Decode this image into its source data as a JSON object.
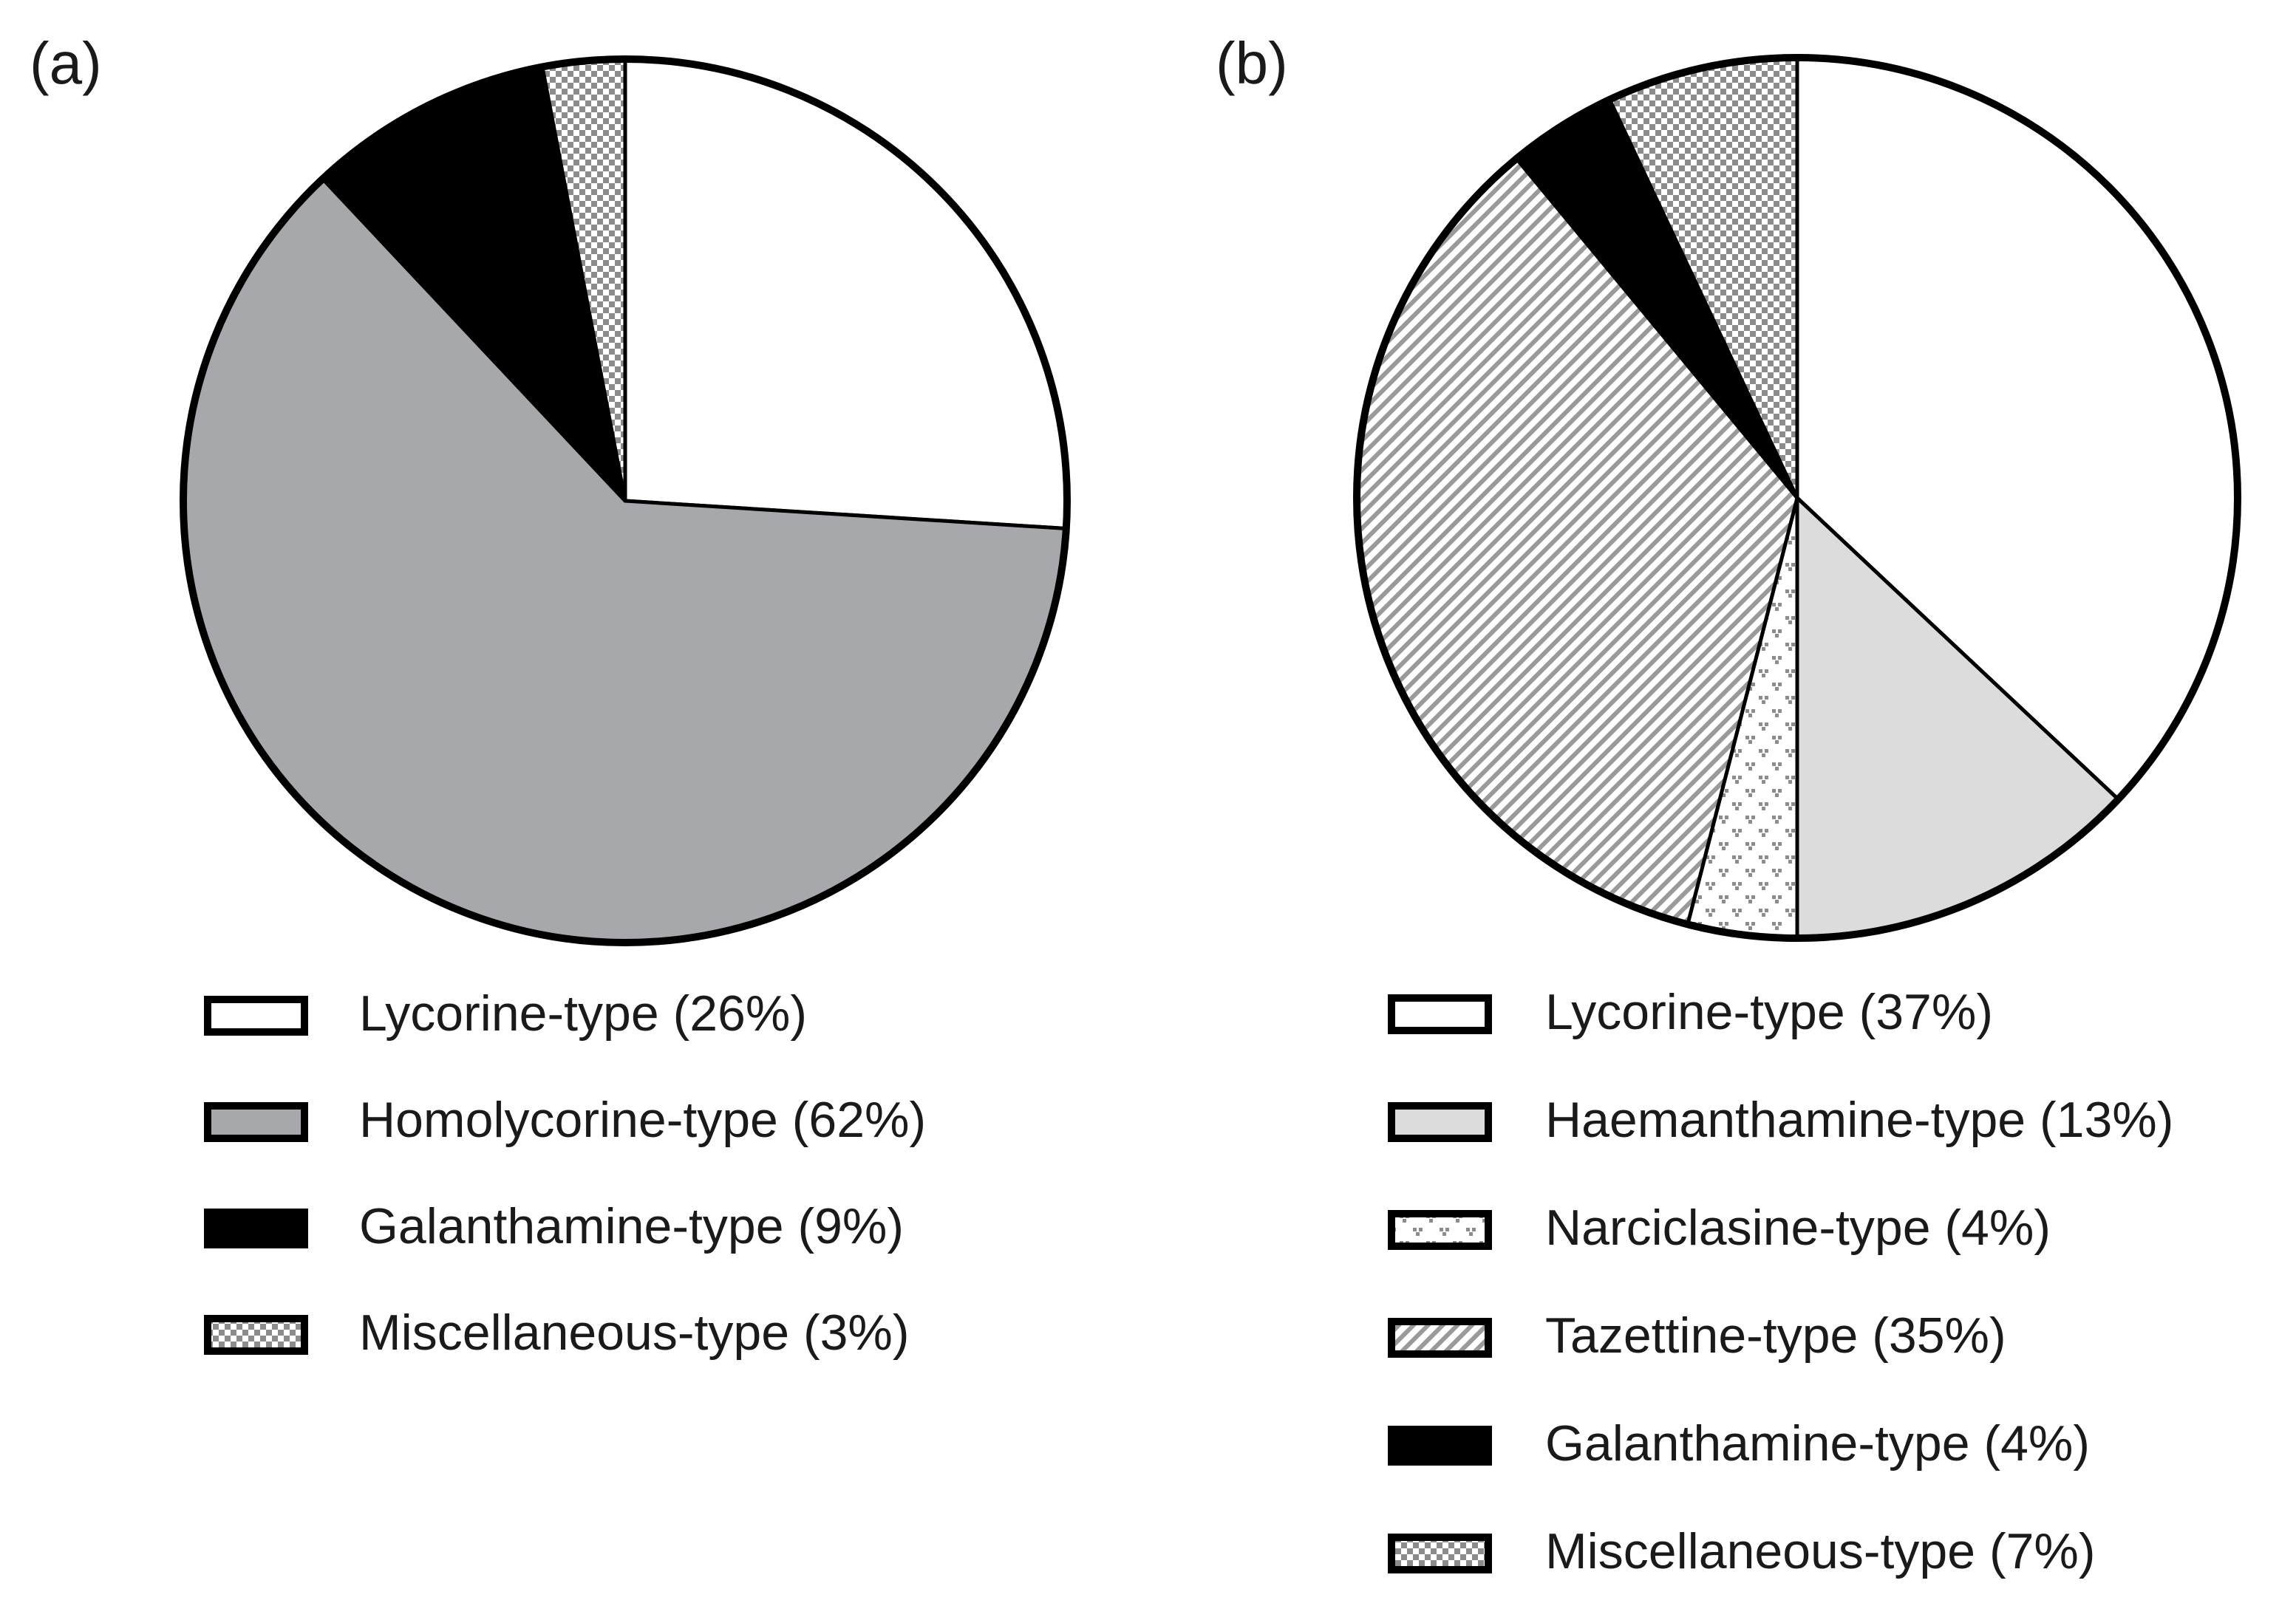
{
  "chart_data": [
    {
      "type": "pie",
      "label": "(a)",
      "categories": [
        "Lycorine-type (26%)",
        "Homolycorine-type (62%)",
        "Galanthamine-type (9%)",
        "Miscellaneous-type (3%)"
      ],
      "values": [
        26,
        62,
        9,
        3
      ],
      "colors": [
        "#ffffff",
        "#a7a8ab",
        "#000000",
        "#8c8c8c"
      ],
      "patterns": [
        null,
        null,
        null,
        "checker"
      ]
    },
    {
      "type": "pie",
      "label": "(b)",
      "categories": [
        "Lycorine-type (37%)",
        "Haemanthamine-type (13%)",
        "Narciclasine-type (4%)",
        "Tazettine-type (35%)",
        "Galanthamine-type (4%)",
        "Miscellaneous-type (7%)"
      ],
      "values": [
        37,
        13,
        4,
        35,
        4,
        7
      ],
      "colors": [
        "#ffffff",
        "#dcdcdc",
        "#ffffff",
        "#9a9a9a",
        "#000000",
        "#8c8c8c"
      ],
      "patterns": [
        null,
        null,
        "dots",
        "hatch",
        null,
        "checker"
      ]
    }
  ]
}
